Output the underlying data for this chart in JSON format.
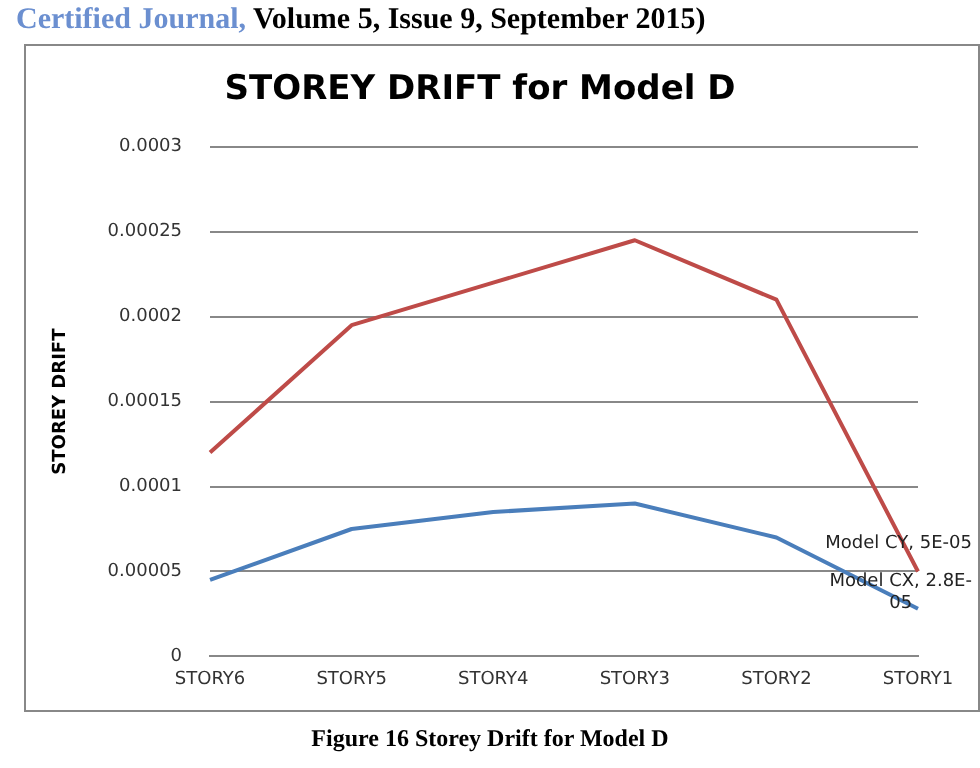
{
  "chart_data": {
    "type": "line",
    "title": "STOREY DRIFT for Model D",
    "ylabel": "STOREY DRIFT",
    "categories": [
      "STORY6",
      "STORY5",
      "STORY4",
      "STORY3",
      "STORY2",
      "STORY1"
    ],
    "series": [
      {
        "color": "#be4b48",
        "values": [
          0.00012,
          0.000195,
          0.00022,
          0.000245,
          0.00021,
          5e-05
        ],
        "value_labels": [
          null,
          null,
          null,
          null,
          null,
          "Model CY, 5E-05"
        ]
      },
      {
        "color": "#4a7ebb",
        "values": [
          4.5e-05,
          7.5e-05,
          8.5e-05,
          9e-05,
          7e-05,
          2.8e-05
        ],
        "value_labels": [
          null,
          null,
          null,
          null,
          null,
          "Model CX, 2.8E-05"
        ]
      }
    ],
    "ylim": [
      0,
      0.0003
    ],
    "yticks": [
      0,
      {
        "value": 5e-05,
        "label": "0.00005"
      },
      {
        "value": 0.0001,
        "label": "0.0001"
      },
      {
        "value": 0.00015,
        "label": "0.00015"
      },
      {
        "value": 0.0002,
        "label": "0.0002"
      },
      {
        "value": 0.00025,
        "label": "0.00025"
      },
      {
        "value": 0.0003,
        "label": "0.0003"
      }
    ],
    "grid": "y",
    "legend": false,
    "marker": "none",
    "line_style": "solid",
    "annotations": [
      "Certified Journal, Volume 5, Issue 9, September 2015)",
      "Figure 16 Storey Drift for Model D"
    ]
  }
}
